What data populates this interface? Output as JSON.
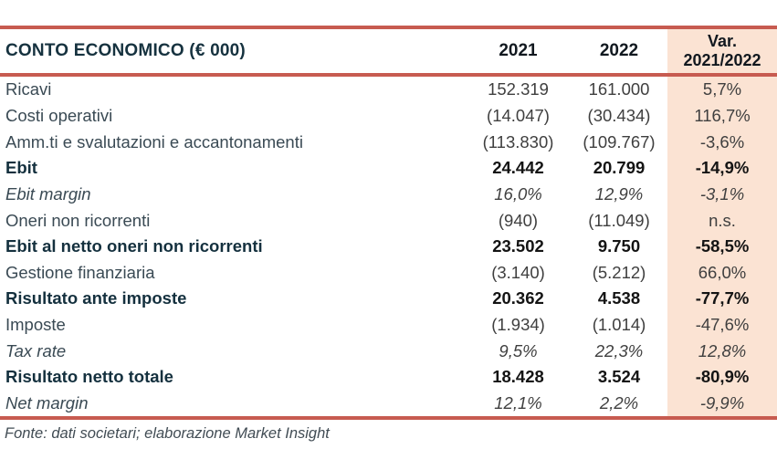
{
  "table": {
    "title": "CONTO ECONOMICO (€ 000)",
    "col_2021": "2021",
    "col_2022": "2022",
    "col_var_line1": "Var.",
    "col_var_line2": "2021/2022",
    "accent_line_color": "#C75B50",
    "var_column_bg_color": "#FBE3D3",
    "rows": [
      {
        "label": "Ricavi",
        "y2021": "152.319",
        "y2022": "161.000",
        "var": "5,7%",
        "style": "normal"
      },
      {
        "label": "Costi operativi",
        "y2021": "(14.047)",
        "y2022": "(30.434)",
        "var": "116,7%",
        "style": "normal"
      },
      {
        "label": "Amm.ti e svalutazioni e accantonamenti",
        "y2021": "(113.830)",
        "y2022": "(109.767)",
        "var": "-3,6%",
        "style": "normal"
      },
      {
        "label": "Ebit",
        "y2021": "24.442",
        "y2022": "20.799",
        "var": "-14,9%",
        "style": "bold"
      },
      {
        "label": "Ebit margin",
        "y2021": "16,0%",
        "y2022": "12,9%",
        "var": "-3,1%",
        "style": "italic"
      },
      {
        "label": "Oneri non ricorrenti",
        "y2021": "(940)",
        "y2022": "(11.049)",
        "var": "n.s.",
        "style": "normal"
      },
      {
        "label": "Ebit al netto oneri non ricorrenti",
        "y2021": "23.502",
        "y2022": "9.750",
        "var": "-58,5%",
        "style": "bold"
      },
      {
        "label": "Gestione finanziaria",
        "y2021": "(3.140)",
        "y2022": "(5.212)",
        "var": "66,0%",
        "style": "normal"
      },
      {
        "label": "Risultato ante imposte",
        "y2021": "20.362",
        "y2022": "4.538",
        "var": "-77,7%",
        "style": "bold"
      },
      {
        "label": "Imposte",
        "y2021": "(1.934)",
        "y2022": "(1.014)",
        "var": "-47,6%",
        "style": "normal"
      },
      {
        "label": "Tax rate",
        "y2021": "9,5%",
        "y2022": "22,3%",
        "var": "12,8%",
        "style": "italic"
      },
      {
        "label": "Risultato netto totale",
        "y2021": "18.428",
        "y2022": "3.524",
        "var": "-80,9%",
        "style": "bold"
      },
      {
        "label": "Net margin",
        "y2021": "12,1%",
        "y2022": "2,2%",
        "var": "-9,9%",
        "style": "italic"
      }
    ],
    "footer": "Fonte: dati societari; elaborazione Market Insight"
  }
}
